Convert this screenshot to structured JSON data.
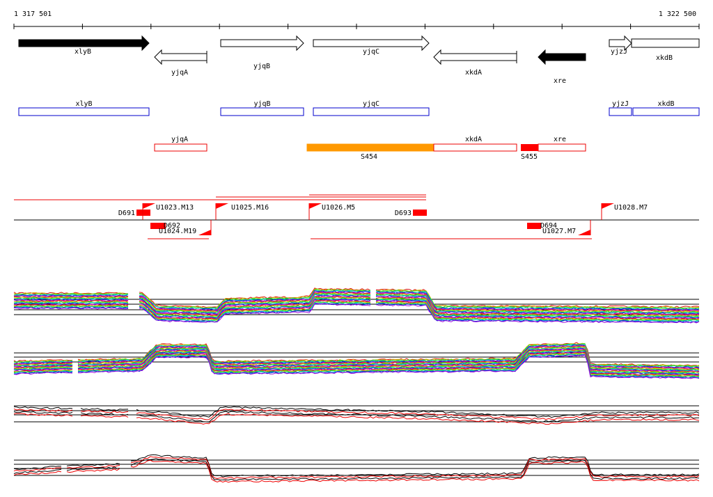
{
  "ruler": {
    "start": "1 317 501",
    "end": "1 322 500"
  },
  "genes": [
    "xlyB",
    "yjqA",
    "yjqB",
    "yjqC",
    "xkdA",
    "xre",
    "yjzJ",
    "xkdB"
  ],
  "blue_track": [
    "xlyB",
    "yjqB",
    "yjqC",
    "yjzJ",
    "xkdB"
  ],
  "red_track": {
    "labels": [
      "yjqA",
      "xkdA",
      "xre"
    ],
    "segments": [
      "S454",
      "S455"
    ]
  },
  "features": [
    "D691",
    "U1023.M13",
    "U1025.M16",
    "U1026.M5",
    "D693",
    "U1028.M7",
    "D692",
    "U1024.M19",
    "D694",
    "U1027.M7"
  ]
}
